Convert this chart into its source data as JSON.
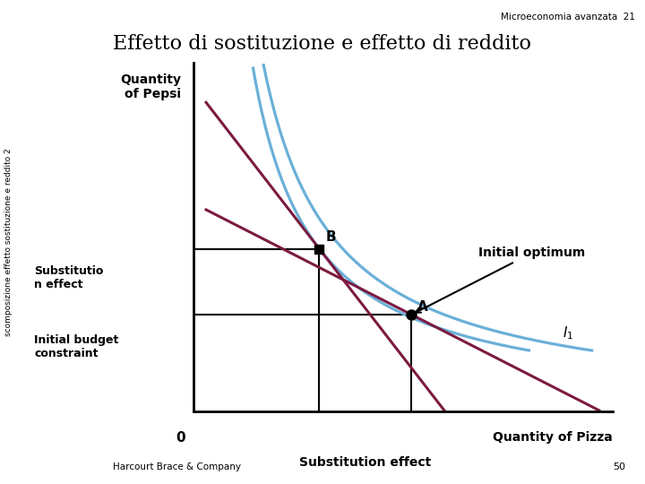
{
  "title": "Effetto di sostituzione e effetto di reddito",
  "title_fontsize": 16,
  "header_text": "Microeconomia avanzata  21",
  "footer_text": "Harcourt Brace & Company",
  "page_number": "50",
  "sidebar_text": "scomposizione effetto sostituzione e reddito 2",
  "ylabel": "Quantity\nof Pepsi",
  "xlabel": "Quantity of Pizza",
  "background_color": "#ffffff",
  "point_A": [
    5.2,
    2.5
  ],
  "point_B": [
    3.0,
    4.2
  ],
  "curve_color": "#6ab0d8",
  "budget_color": "#7b1a40",
  "arrow_color": "#f5a31a",
  "label_A": "A",
  "label_B": "B",
  "label_I1": "$\\mathit{I}_1$",
  "text_initial_optimum": "Initial optimum",
  "text_substitution_effect_label": "Substitutio\nn effect",
  "text_initial_budget": "Initial budget\nconstraint",
  "text_sub_effect_bottom": "Substitution effect",
  "xlim": [
    0,
    10
  ],
  "ylim": [
    0,
    9
  ]
}
